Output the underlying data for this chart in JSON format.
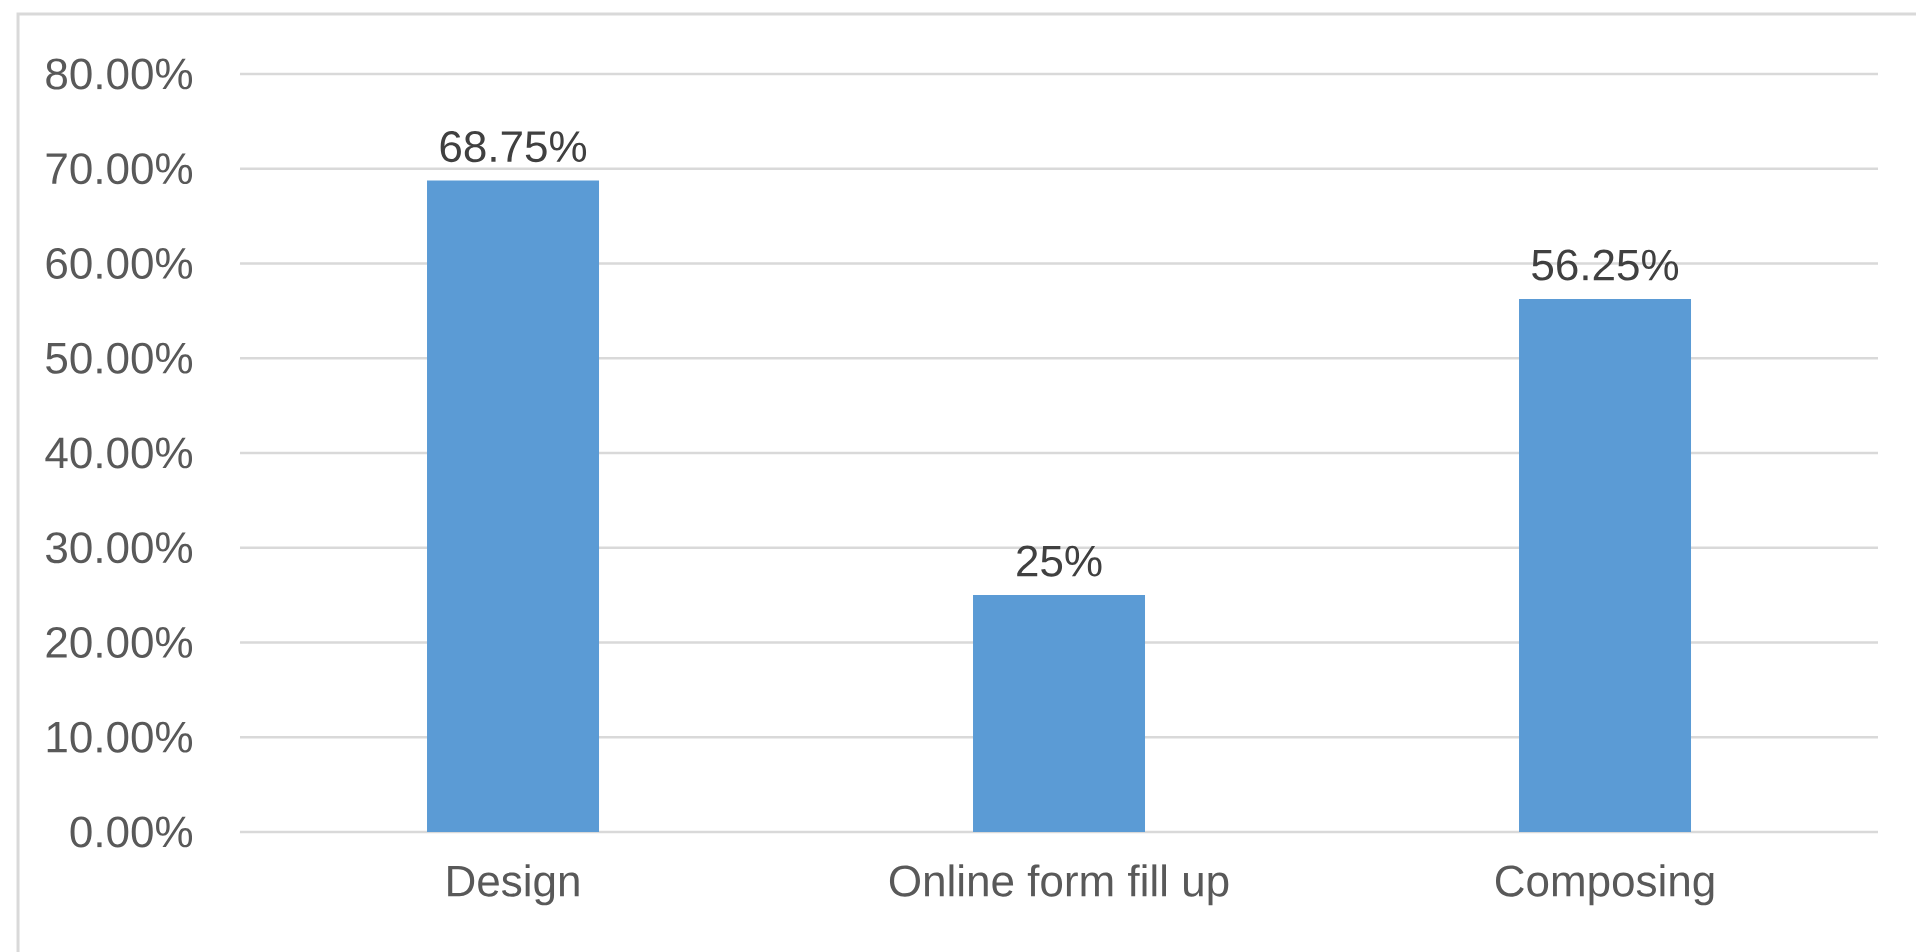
{
  "chart_data": {
    "type": "bar",
    "categories": [
      "Design",
      "Online form fill up",
      "Composing"
    ],
    "values": [
      68.75,
      25,
      56.25
    ],
    "value_labels": [
      "68.75%",
      "25%",
      "56.25%"
    ],
    "color": "#5b9bd5",
    "ylim": [
      0,
      80
    ],
    "yticks": [
      {
        "value": 0,
        "label": "0.00%"
      },
      {
        "value": 10,
        "label": "10.00%"
      },
      {
        "value": 20,
        "label": "20.00%"
      },
      {
        "value": 30,
        "label": "30.00%"
      },
      {
        "value": 40,
        "label": "40.00%"
      },
      {
        "value": 50,
        "label": "50.00%"
      },
      {
        "value": 60,
        "label": "60.00%"
      },
      {
        "value": 70,
        "label": "70.00%"
      },
      {
        "value": 80,
        "label": "80.00%"
      }
    ],
    "grid": "y"
  }
}
